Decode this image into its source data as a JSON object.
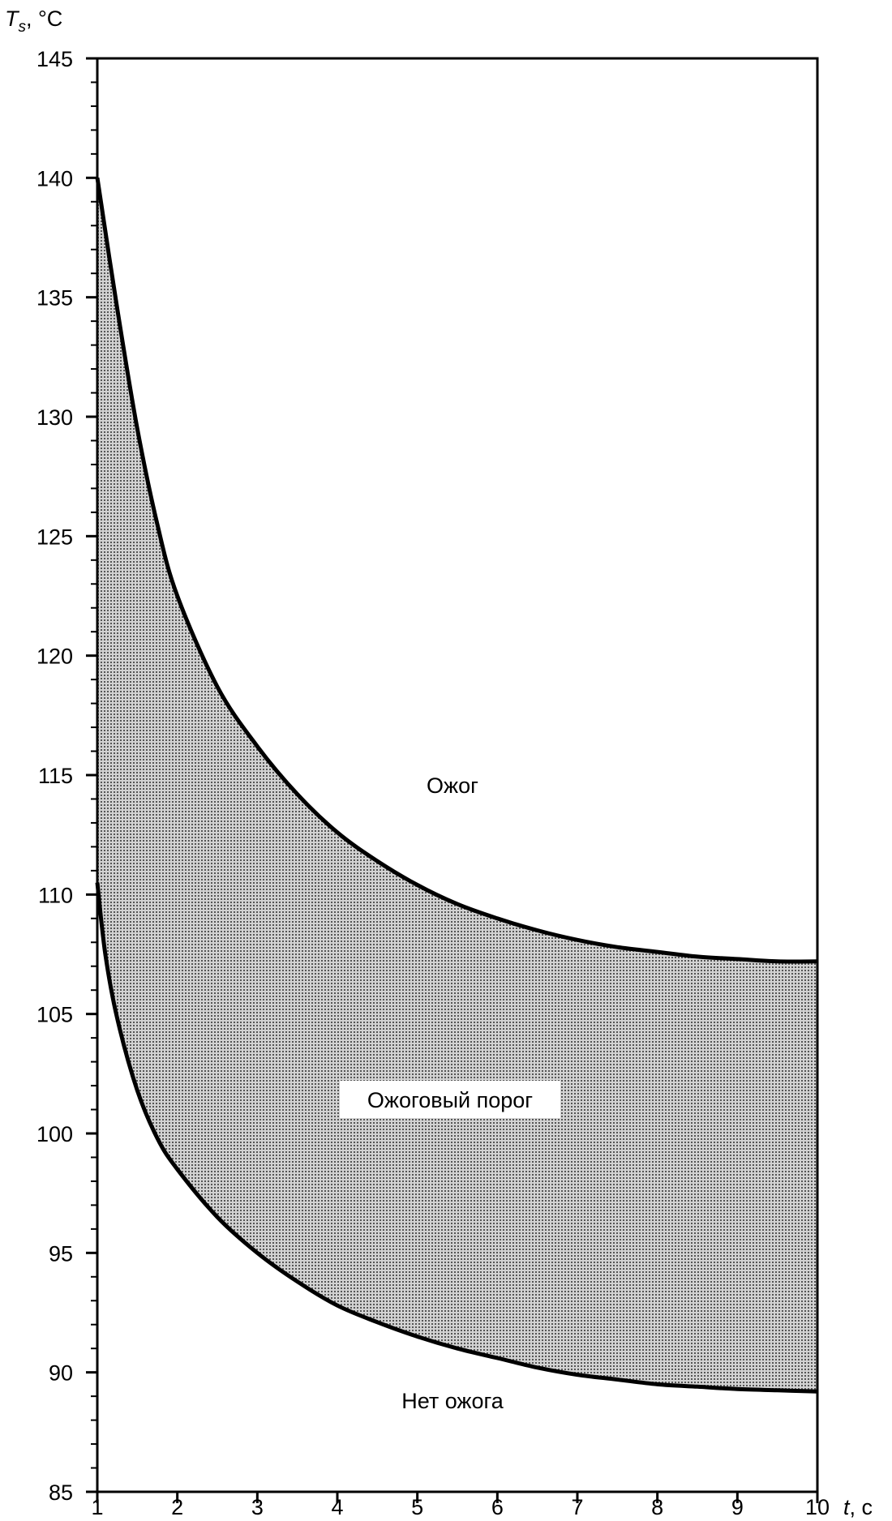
{
  "chart_data": {
    "type": "area",
    "title": "",
    "ylabel_main": "T",
    "ylabel_sub": "s",
    "ylabel_unit": ", °C",
    "xlabel_var": "t",
    "xlabel_unit": ", с",
    "xlim": [
      1,
      10
    ],
    "ylim": [
      85,
      145
    ],
    "x_ticks": [
      "1",
      "2",
      "3",
      "4",
      "5",
      "6",
      "7",
      "8",
      "9",
      "10"
    ],
    "y_ticks": [
      "85",
      "90",
      "95",
      "100",
      "105",
      "110",
      "115",
      "120",
      "125",
      "130",
      "135",
      "140",
      "145"
    ],
    "x_tick_values": [
      1,
      2,
      3,
      4,
      5,
      6,
      7,
      8,
      9,
      10
    ],
    "y_tick_values": [
      85,
      90,
      95,
      100,
      105,
      110,
      115,
      120,
      125,
      130,
      135,
      140,
      145
    ],
    "y_minor_step": 1,
    "grid": false,
    "series": [
      {
        "x": [
          1,
          1.25,
          1.5,
          1.75,
          2,
          2.5,
          3,
          3.5,
          4,
          4.5,
          5,
          5.5,
          6,
          6.5,
          7,
          7.5,
          8,
          8.5,
          9,
          9.5,
          10
        ],
        "y": [
          140,
          134.5,
          129.5,
          125.5,
          122.5,
          118.7,
          116.2,
          114.2,
          112.6,
          111.4,
          110.4,
          109.6,
          109.0,
          108.5,
          108.1,
          107.8,
          107.6,
          107.4,
          107.3,
          107.2,
          107.2
        ]
      },
      {
        "x": [
          1,
          1.1,
          1.25,
          1.5,
          1.75,
          2,
          2.5,
          3,
          3.5,
          4,
          4.5,
          5,
          5.5,
          6,
          6.5,
          7,
          7.5,
          8,
          8.5,
          9,
          9.5,
          10
        ],
        "y": [
          110.5,
          107.5,
          104.8,
          101.8,
          99.8,
          98.5,
          96.5,
          95.0,
          93.8,
          92.8,
          92.1,
          91.5,
          91.0,
          90.6,
          90.2,
          89.9,
          89.7,
          89.5,
          89.4,
          89.3,
          89.25,
          89.2
        ]
      }
    ],
    "region_labels": {
      "upper": "Ожог",
      "middle": "Ожоговый порог",
      "lower": "Нет ожога"
    },
    "colors": {
      "band_fill": "#b5b5b5",
      "line": "#000000",
      "background": "#ffffff"
    }
  }
}
